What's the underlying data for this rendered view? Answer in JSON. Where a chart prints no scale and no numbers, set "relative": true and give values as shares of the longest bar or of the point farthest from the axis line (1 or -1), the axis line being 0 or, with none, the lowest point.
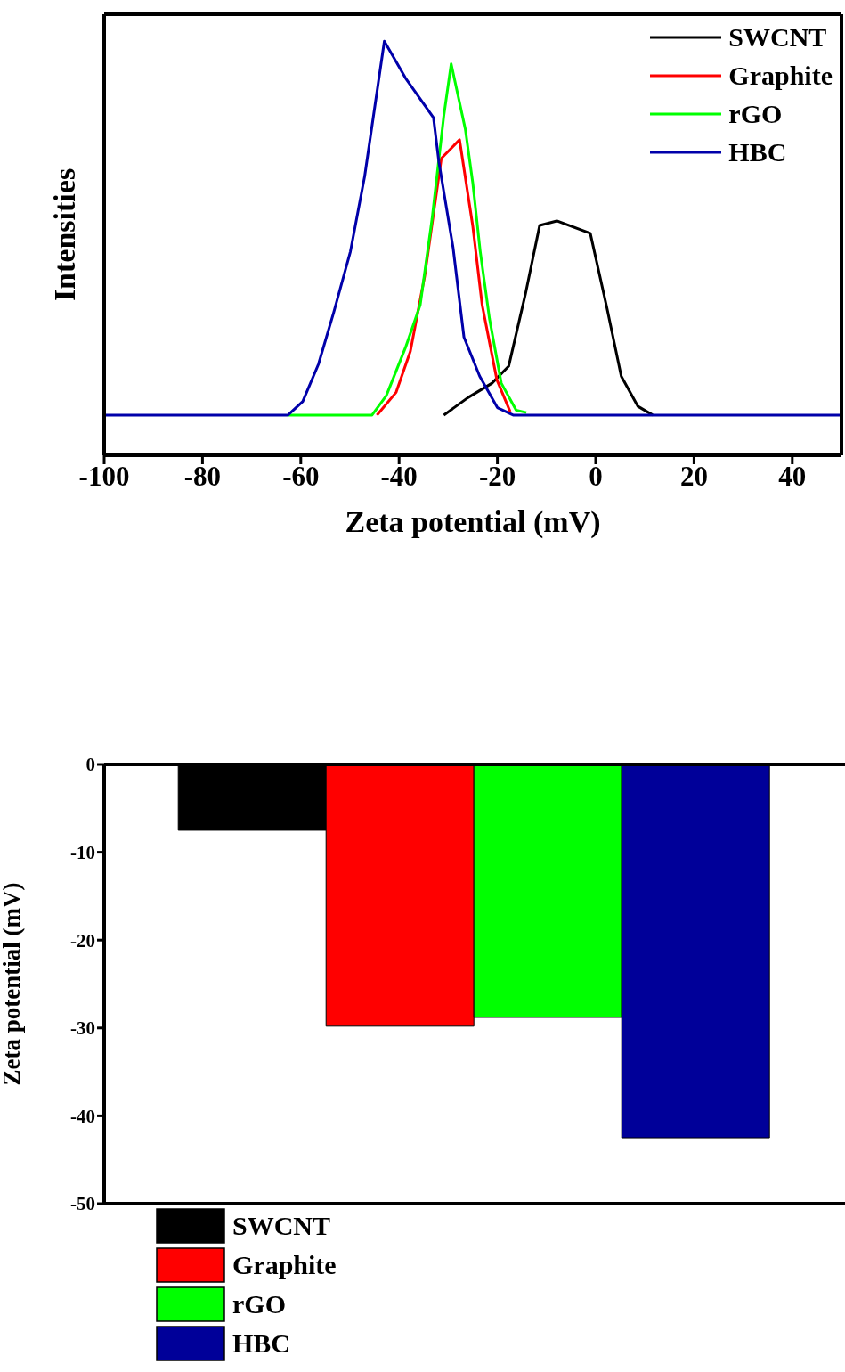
{
  "chart_data": [
    {
      "type": "line",
      "relative": true,
      "xlabel": "Zeta potential (mV)",
      "ylabel": "Intensities",
      "xlim": [
        -100,
        50
      ],
      "xticks": [
        -100,
        -80,
        -60,
        -40,
        -20,
        0,
        20,
        40
      ],
      "legend": "top right",
      "marker": "none",
      "line_style": "solid",
      "grid": false,
      "series": [
        {
          "name": "SWCNT",
          "color": "#000000",
          "x": [
            -30.9,
            -26,
            -21.1,
            -17.7,
            -14.3,
            -11.4,
            -7.9,
            -1.1,
            2.3,
            5.2,
            8.6,
            11.6
          ],
          "values": [
            0.097,
            0.139,
            0.174,
            0.215,
            0.389,
            0.555,
            0.566,
            0.536,
            0.355,
            0.191,
            0.118,
            0.097
          ]
        },
        {
          "name": "Graphite",
          "color": "#ff0000",
          "x": [
            -44.5,
            -40.6,
            -37.7,
            -34.8,
            -31.4,
            -27.7,
            -25,
            -23.1,
            -20.1,
            -17.4
          ],
          "values": [
            0.097,
            0.152,
            0.251,
            0.432,
            0.717,
            0.762,
            0.553,
            0.363,
            0.182,
            0.105
          ]
        },
        {
          "name": "rGO",
          "color": "#00ff00",
          "x": [
            -62.6,
            -45.5,
            -42.6,
            -38.7,
            -35.7,
            -33.3,
            -30.9,
            -29.4,
            -26.5,
            -25,
            -23.5,
            -21.6,
            -19.2,
            -16.2,
            -14.1
          ],
          "values": [
            0.097,
            0.097,
            0.144,
            0.26,
            0.363,
            0.57,
            0.82,
            0.945,
            0.786,
            0.657,
            0.493,
            0.329,
            0.174,
            0.109,
            0.103
          ]
        },
        {
          "name": "HBC",
          "color": "#0000aa",
          "x": [
            -100,
            -62.6,
            -59.6,
            -56.4,
            -53.3,
            -49.9,
            -47,
            -43,
            -38.7,
            -33,
            -31.9,
            -29,
            -26.8,
            -23.6,
            -20,
            -16.8,
            50
          ],
          "values": [
            0.097,
            0.097,
            0.13,
            0.22,
            0.345,
            0.492,
            0.674,
            1.0,
            0.911,
            0.815,
            0.708,
            0.5,
            0.285,
            0.191,
            0.115,
            0.097,
            0.097
          ]
        }
      ]
    },
    {
      "type": "bar",
      "ylabel": "Zeta potential (mV)",
      "categories": [
        null
      ],
      "ylim": [
        -50,
        0
      ],
      "yticks": [
        -50,
        -40,
        -30,
        -20,
        -10,
        0
      ],
      "legend": "bottom left",
      "grid": false,
      "series": [
        {
          "name": "SWCNT",
          "color": "#000000",
          "values": [
            -7.5
          ]
        },
        {
          "name": "Graphite",
          "color": "#ff0000",
          "values": [
            -29.8
          ]
        },
        {
          "name": "rGO",
          "color": "#00ff00",
          "values": [
            -28.8
          ]
        },
        {
          "name": "HBC",
          "color": "#000099",
          "values": [
            -42.5
          ]
        }
      ]
    }
  ]
}
